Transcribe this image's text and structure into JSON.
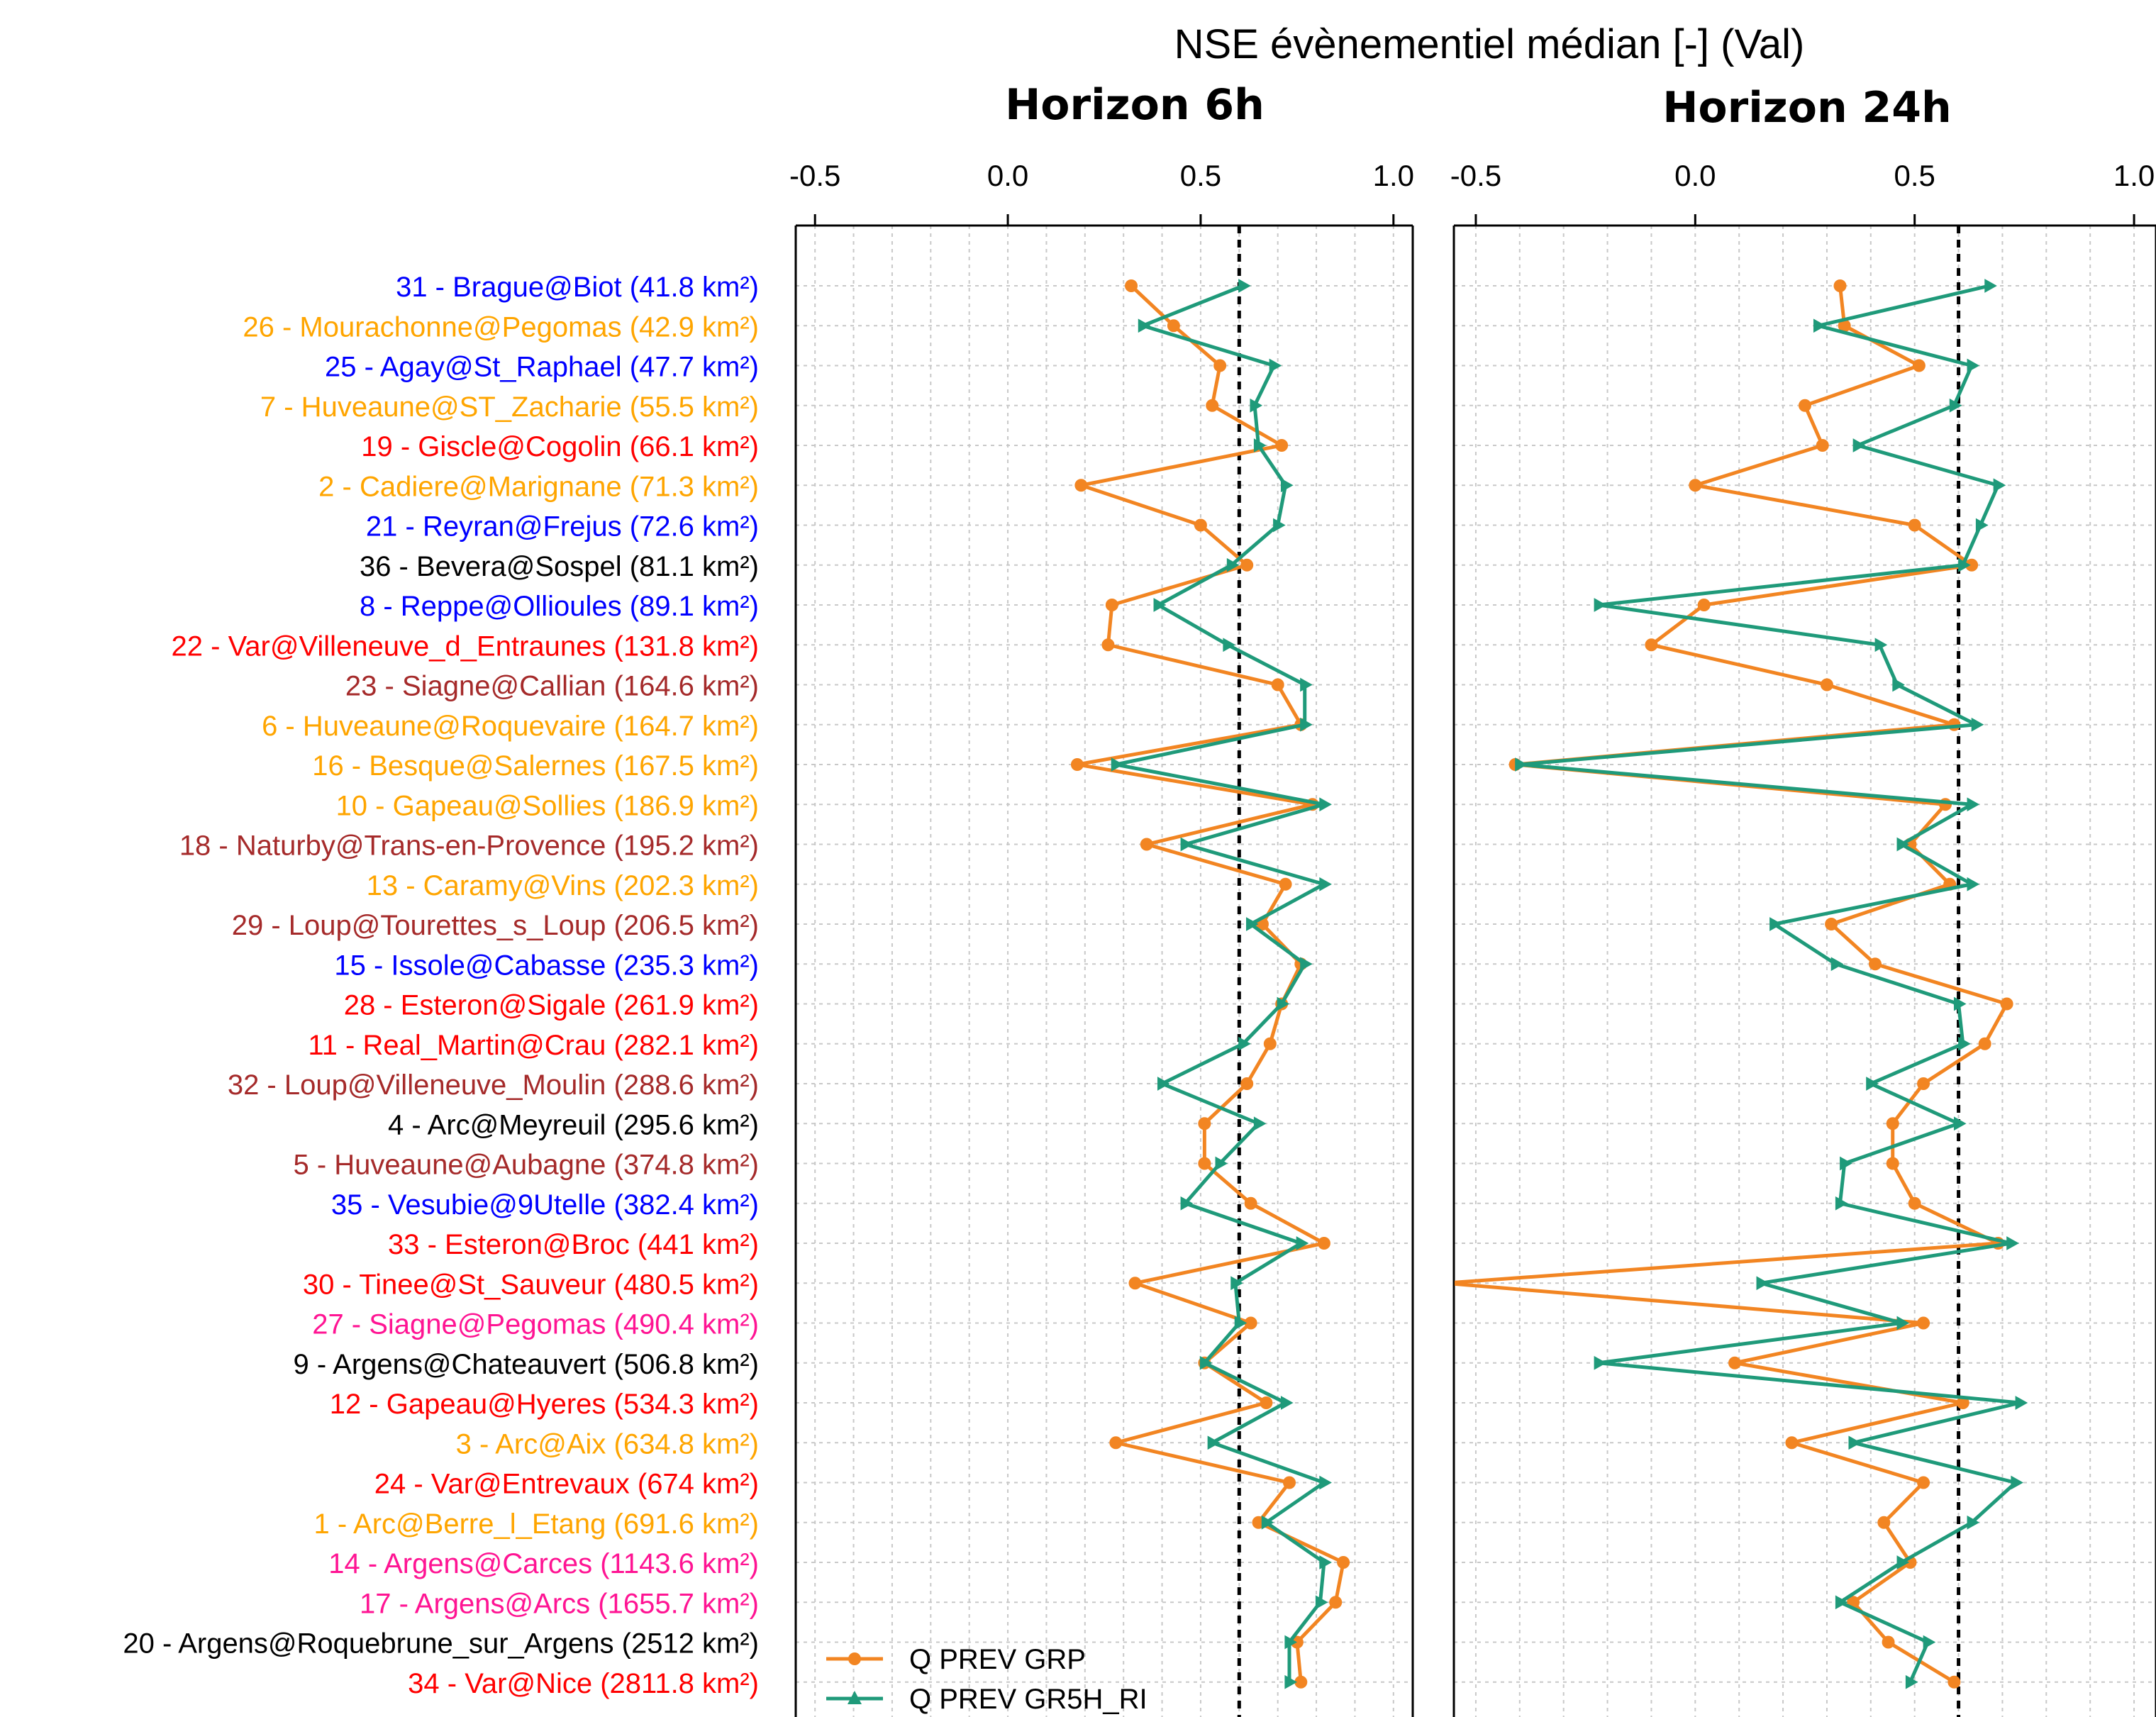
{
  "chart_data": {
    "type": "line",
    "title": "NSE évènementiel médian [-] (Val)",
    "panels": [
      "Horizon 6h",
      "Horizon 24h"
    ],
    "xticks": [
      "-0.5",
      "0.0",
      "0.5",
      "1.0"
    ],
    "xtick_values": [
      -0.5,
      0.0,
      0.5,
      1.0
    ],
    "xlim": [
      -0.55,
      1.05
    ],
    "reference_line": 0.6,
    "grid": true,
    "legend_position": "bottom-left",
    "colors": {
      "GRP": "#f28522",
      "GR5H_RI": "#1f9a7a"
    },
    "series": [
      {
        "name": "Q PREV GRP",
        "key": "GRP",
        "marker": "circle"
      },
      {
        "name": "Q PREV GR5H_RI",
        "key": "GR5H_RI",
        "marker": "triangle"
      }
    ],
    "stations": [
      {
        "label": "31 - Brague@Biot (41.8 km²)",
        "color": "#0000ff",
        "h6": {
          "GRP": 0.32,
          "GR5H_RI": 0.61
        },
        "h24": {
          "GRP": 0.33,
          "GR5H_RI": 0.67
        }
      },
      {
        "label": "26 - Mourachonne@Pegomas (42.9 km²)",
        "color": "#ffa500",
        "h6": {
          "GRP": 0.43,
          "GR5H_RI": 0.35
        },
        "h24": {
          "GRP": 0.34,
          "GR5H_RI": 0.28
        }
      },
      {
        "label": "25 - Agay@St_Raphael (47.7 km²)",
        "color": "#0000ff",
        "h6": {
          "GRP": 0.55,
          "GR5H_RI": 0.69
        },
        "h24": {
          "GRP": 0.51,
          "GR5H_RI": 0.63
        }
      },
      {
        "label": "7 - Huveaune@ST_Zacharie (55.5 km²)",
        "color": "#ffa500",
        "h6": {
          "GRP": 0.53,
          "GR5H_RI": 0.64
        },
        "h24": {
          "GRP": 0.25,
          "GR5H_RI": 0.59
        }
      },
      {
        "label": "19 - Giscle@Cogolin (66.1 km²)",
        "color": "#ff0000",
        "h6": {
          "GRP": 0.71,
          "GR5H_RI": 0.65
        },
        "h24": {
          "GRP": 0.29,
          "GR5H_RI": 0.37
        }
      },
      {
        "label": "2 - Cadiere@Marignane (71.3 km²)",
        "color": "#ffa500",
        "h6": {
          "GRP": 0.19,
          "GR5H_RI": 0.72
        },
        "h24": {
          "GRP": 0.0,
          "GR5H_RI": 0.69
        }
      },
      {
        "label": "21 - Reyran@Frejus (72.6 km²)",
        "color": "#0000ff",
        "h6": {
          "GRP": 0.5,
          "GR5H_RI": 0.7
        },
        "h24": {
          "GRP": 0.5,
          "GR5H_RI": 0.65
        }
      },
      {
        "label": "36 - Bevera@Sospel (81.1 km²)",
        "color": "#000000",
        "h6": {
          "GRP": 0.62,
          "GR5H_RI": 0.58
        },
        "h24": {
          "GRP": 0.63,
          "GR5H_RI": 0.61
        }
      },
      {
        "label": "8 - Reppe@Ollioules (89.1 km²)",
        "color": "#0000ff",
        "h6": {
          "GRP": 0.27,
          "GR5H_RI": 0.39
        },
        "h24": {
          "GRP": 0.02,
          "GR5H_RI": -0.22
        }
      },
      {
        "label": "22 - Var@Villeneuve_d_Entraunes (131.8 km²)",
        "color": "#ff0000",
        "h6": {
          "GRP": 0.26,
          "GR5H_RI": 0.57
        },
        "h24": {
          "GRP": -0.1,
          "GR5H_RI": 0.42
        }
      },
      {
        "label": "23 - Siagne@Callian (164.6 km²)",
        "color": "#a52a2a",
        "h6": {
          "GRP": 0.7,
          "GR5H_RI": 0.77
        },
        "h24": {
          "GRP": 0.3,
          "GR5H_RI": 0.46
        }
      },
      {
        "label": "6 - Huveaune@Roquevaire (164.7 km²)",
        "color": "#ffa500",
        "h6": {
          "GRP": 0.76,
          "GR5H_RI": 0.77
        },
        "h24": {
          "GRP": 0.59,
          "GR5H_RI": 0.64
        }
      },
      {
        "label": "16 - Besque@Salernes (167.5 km²)",
        "color": "#ffa500",
        "h6": {
          "GRP": 0.18,
          "GR5H_RI": 0.28
        },
        "h24": {
          "GRP": -0.41,
          "GR5H_RI": -0.4
        }
      },
      {
        "label": "10 - Gapeau@Sollies (186.9 km²)",
        "color": "#ffa500",
        "h6": {
          "GRP": 0.79,
          "GR5H_RI": 0.82
        },
        "h24": {
          "GRP": 0.57,
          "GR5H_RI": 0.63
        }
      },
      {
        "label": "18 - Naturby@Trans-en-Provence (195.2 km²)",
        "color": "#a52a2a",
        "h6": {
          "GRP": 0.36,
          "GR5H_RI": 0.46
        },
        "h24": {
          "GRP": 0.49,
          "GR5H_RI": 0.47
        }
      },
      {
        "label": "13 - Caramy@Vins (202.3 km²)",
        "color": "#ffa500",
        "h6": {
          "GRP": 0.72,
          "GR5H_RI": 0.82
        },
        "h24": {
          "GRP": 0.58,
          "GR5H_RI": 0.63
        }
      },
      {
        "label": "29 - Loup@Tourettes_s_Loup (206.5 km²)",
        "color": "#a52a2a",
        "h6": {
          "GRP": 0.66,
          "GR5H_RI": 0.63
        },
        "h24": {
          "GRP": 0.31,
          "GR5H_RI": 0.18
        }
      },
      {
        "label": "15 - Issole@Cabasse (235.3 km²)",
        "color": "#0000ff",
        "h6": {
          "GRP": 0.76,
          "GR5H_RI": 0.77
        },
        "h24": {
          "GRP": 0.41,
          "GR5H_RI": 0.32
        }
      },
      {
        "label": "28 - Esteron@Sigale (261.9 km²)",
        "color": "#ff0000",
        "h6": {
          "GRP": 0.71,
          "GR5H_RI": 0.71
        },
        "h24": {
          "GRP": 0.71,
          "GR5H_RI": 0.6
        }
      },
      {
        "label": "11 - Real_Martin@Crau (282.1 km²)",
        "color": "#ff0000",
        "h6": {
          "GRP": 0.68,
          "GR5H_RI": 0.61
        },
        "h24": {
          "GRP": 0.66,
          "GR5H_RI": 0.61
        }
      },
      {
        "label": "32 - Loup@Villeneuve_Moulin (288.6 km²)",
        "color": "#a52a2a",
        "h6": {
          "GRP": 0.62,
          "GR5H_RI": 0.4
        },
        "h24": {
          "GRP": 0.52,
          "GR5H_RI": 0.4
        }
      },
      {
        "label": "4 - Arc@Meyreuil (295.6 km²)",
        "color": "#000000",
        "h6": {
          "GRP": 0.51,
          "GR5H_RI": 0.65
        },
        "h24": {
          "GRP": 0.45,
          "GR5H_RI": 0.6
        }
      },
      {
        "label": "5 - Huveaune@Aubagne (374.8 km²)",
        "color": "#a52a2a",
        "h6": {
          "GRP": 0.51,
          "GR5H_RI": 0.55
        },
        "h24": {
          "GRP": 0.45,
          "GR5H_RI": 0.34
        }
      },
      {
        "label": "35 - Vesubie@9Utelle (382.4 km²)",
        "color": "#0000ff",
        "h6": {
          "GRP": 0.63,
          "GR5H_RI": 0.46
        },
        "h24": {
          "GRP": 0.5,
          "GR5H_RI": 0.33
        }
      },
      {
        "label": "33 - Esteron@Broc (441 km²)",
        "color": "#ff0000",
        "h6": {
          "GRP": 0.82,
          "GR5H_RI": 0.76
        },
        "h24": {
          "GRP": 0.69,
          "GR5H_RI": 0.72
        }
      },
      {
        "label": "30 - Tinee@St_Sauveur (480.5 km²)",
        "color": "#ff0000",
        "h6": {
          "GRP": 0.33,
          "GR5H_RI": 0.59
        },
        "h24": {
          "GRP": -0.57,
          "GR5H_RI": 0.15
        }
      },
      {
        "label": "27 - Siagne@Pegomas (490.4 km²)",
        "color": "#ff1493",
        "h6": {
          "GRP": 0.63,
          "GR5H_RI": 0.6
        },
        "h24": {
          "GRP": 0.52,
          "GR5H_RI": 0.47
        }
      },
      {
        "label": "9 - Argens@Chateauvert (506.8 km²)",
        "color": "#000000",
        "h6": {
          "GRP": 0.51,
          "GR5H_RI": 0.51
        },
        "h24": {
          "GRP": 0.09,
          "GR5H_RI": -0.22
        }
      },
      {
        "label": "12 - Gapeau@Hyeres (534.3 km²)",
        "color": "#ff0000",
        "h6": {
          "GRP": 0.67,
          "GR5H_RI": 0.72
        },
        "h24": {
          "GRP": 0.61,
          "GR5H_RI": 0.74
        }
      },
      {
        "label": "3 - Arc@Aix (634.8 km²)",
        "color": "#ffa500",
        "h6": {
          "GRP": 0.28,
          "GR5H_RI": 0.53
        },
        "h24": {
          "GRP": 0.22,
          "GR5H_RI": 0.36
        }
      },
      {
        "label": "24 - Var@Entrevaux (674 km²)",
        "color": "#ff0000",
        "h6": {
          "GRP": 0.73,
          "GR5H_RI": 0.82
        },
        "h24": {
          "GRP": 0.52,
          "GR5H_RI": 0.73
        }
      },
      {
        "label": "1 - Arc@Berre_l_Etang (691.6 km²)",
        "color": "#ffa500",
        "h6": {
          "GRP": 0.65,
          "GR5H_RI": 0.67
        },
        "h24": {
          "GRP": 0.43,
          "GR5H_RI": 0.63
        }
      },
      {
        "label": "14 - Argens@Carces (1143.6 km²)",
        "color": "#ff1493",
        "h6": {
          "GRP": 0.87,
          "GR5H_RI": 0.82
        },
        "h24": {
          "GRP": 0.49,
          "GR5H_RI": 0.47
        }
      },
      {
        "label": "17 - Argens@Arcs (1655.7 km²)",
        "color": "#ff1493",
        "h6": {
          "GRP": 0.85,
          "GR5H_RI": 0.81
        },
        "h24": {
          "GRP": 0.36,
          "GR5H_RI": 0.33
        }
      },
      {
        "label": "20 - Argens@Roquebrune_sur_Argens (2512 km²)",
        "color": "#000000",
        "h6": {
          "GRP": 0.75,
          "GR5H_RI": 0.73
        },
        "h24": {
          "GRP": 0.44,
          "GR5H_RI": 0.53
        }
      },
      {
        "label": "34 - Var@Nice (2811.8 km²)",
        "color": "#ff0000",
        "h6": {
          "GRP": 0.76,
          "GR5H_RI": 0.73
        },
        "h24": {
          "GRP": 0.59,
          "GR5H_RI": 0.49
        }
      }
    ]
  }
}
